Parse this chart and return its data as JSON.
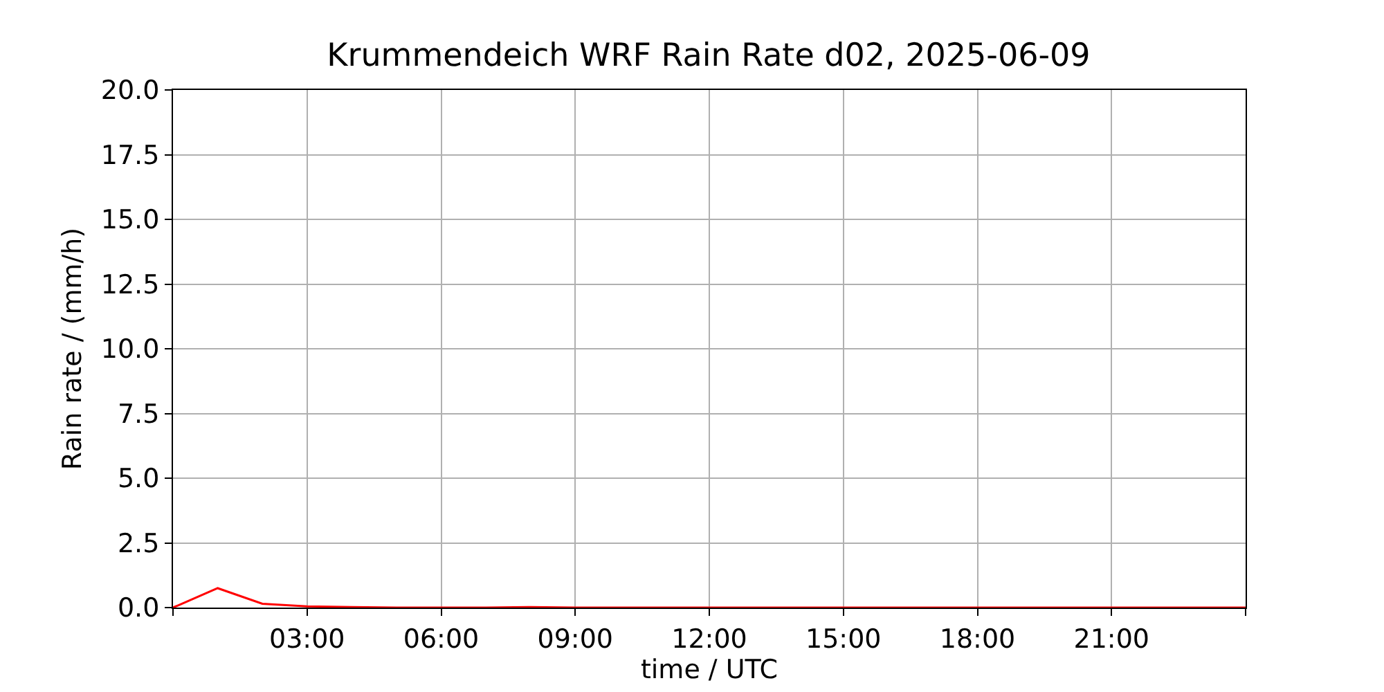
{
  "chart_data": {
    "type": "line",
    "title": "Krummendeich WRF Rain Rate d02, 2025-06-09",
    "xlabel": "time / UTC",
    "ylabel": "Rain rate / (mm/h)",
    "x": [
      0,
      1,
      2,
      3,
      4,
      5,
      6,
      7,
      8,
      9,
      10,
      11,
      12,
      13,
      14,
      15,
      16,
      17,
      18,
      19,
      20,
      21,
      22,
      23,
      24
    ],
    "series": [
      {
        "color": "#ff0000",
        "values": [
          0,
          0.75,
          0.15,
          0.05,
          0.02,
          0,
          0,
          0,
          0.02,
          0,
          0,
          0,
          0,
          0,
          0,
          0,
          0,
          0,
          0,
          0,
          0,
          0,
          0,
          0,
          0
        ]
      }
    ],
    "xlim": [
      0,
      24
    ],
    "xticks": [
      {
        "value": 0,
        "label": null
      },
      {
        "value": 3,
        "label": "03:00"
      },
      {
        "value": 6,
        "label": "06:00"
      },
      {
        "value": 9,
        "label": "09:00"
      },
      {
        "value": 12,
        "label": "12:00"
      },
      {
        "value": 15,
        "label": "15:00"
      },
      {
        "value": 18,
        "label": "18:00"
      },
      {
        "value": 21,
        "label": "21:00"
      },
      {
        "value": 24,
        "label": null
      }
    ],
    "ylim": [
      0,
      20
    ],
    "yticks": [
      {
        "value": 0,
        "label": "0.0"
      },
      {
        "value": 2.5,
        "label": "2.5"
      },
      {
        "value": 5,
        "label": "5.0"
      },
      {
        "value": 7.5,
        "label": "7.5"
      },
      {
        "value": 10,
        "label": "10.0"
      },
      {
        "value": 12.5,
        "label": "12.5"
      },
      {
        "value": 15,
        "label": "15.0"
      },
      {
        "value": 17.5,
        "label": "17.5"
      },
      {
        "value": 20,
        "label": "20.0"
      }
    ],
    "grid": true
  }
}
